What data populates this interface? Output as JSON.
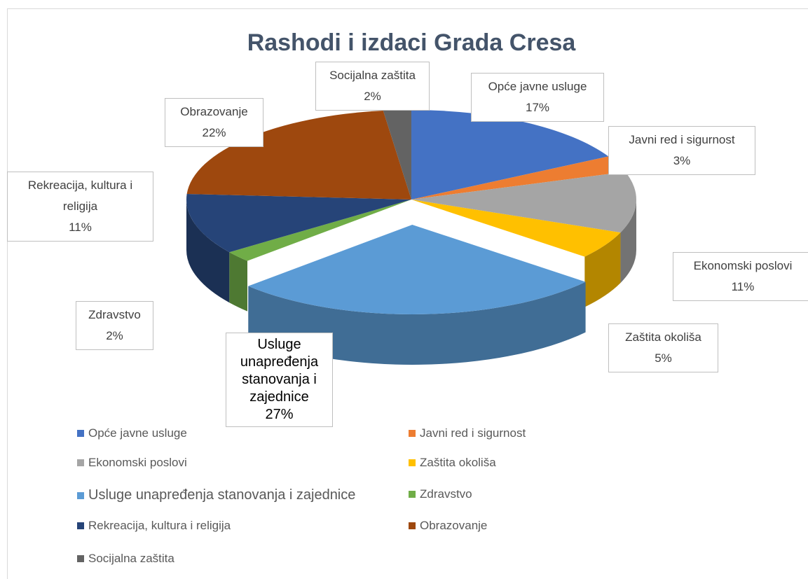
{
  "chart_data": {
    "type": "pie3d",
    "title": "Rashodi i izdaci Grada Cresa",
    "categories": [
      "Opće javne usluge",
      "Javni red i sigurnost",
      "Ekonomski poslovi",
      "Zaštita okoliša",
      "Usluge unapređenja stanovanja i zajednice",
      "Zdravstvo",
      "Rekreacija, kultura i religija",
      "Obrazovanje",
      "Socijalna zaštita"
    ],
    "values": [
      17,
      3,
      11,
      5,
      27,
      2,
      11,
      22,
      2
    ],
    "value_labels": [
      "17%",
      "3%",
      "11%",
      "5%",
      "27%",
      "2%",
      "11%",
      "22%",
      "2%"
    ],
    "colors": [
      "#4472c4",
      "#ed7d31",
      "#a5a5a5",
      "#ffc000",
      "#5b9bd5",
      "#70ad47",
      "#264478",
      "#9e480e",
      "#636363"
    ],
    "legend": "bottom"
  }
}
